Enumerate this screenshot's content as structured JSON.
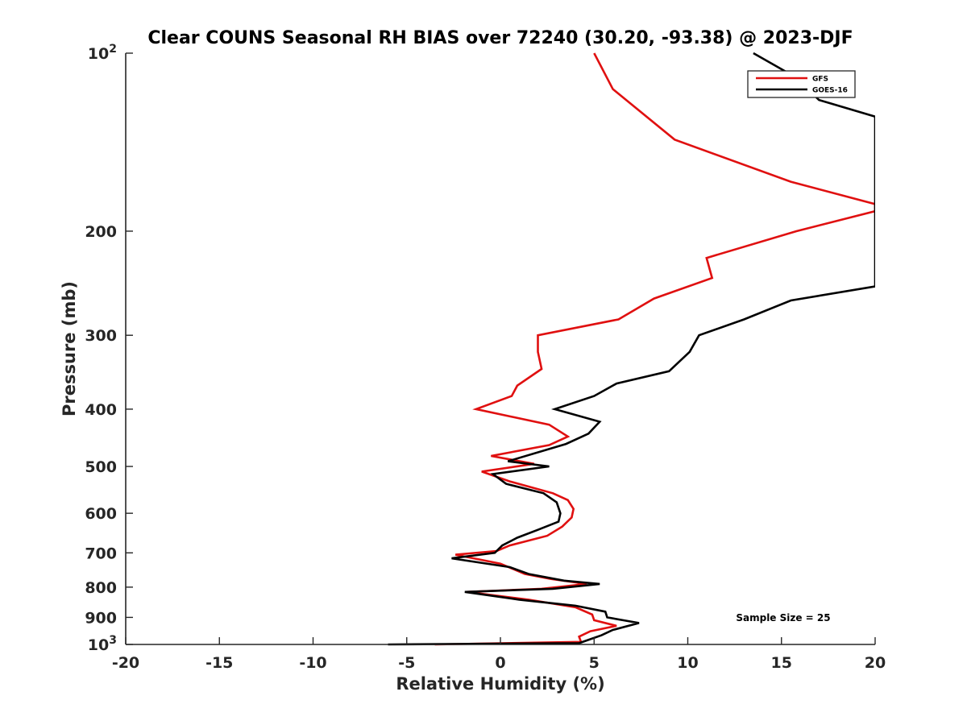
{
  "chart_data": {
    "type": "line",
    "title": "Clear COUNS Seasonal RH BIAS over 72240 (30.20, -93.38) @ 2023-DJF",
    "xlabel": "Relative Humidity (%)",
    "ylabel": "Pressure (mb)",
    "xlim": [
      -20,
      20
    ],
    "ylim": [
      100,
      1000
    ],
    "yscale": "log",
    "y_reversed": true,
    "grid": false,
    "legend_position": "top-right",
    "x_ticks": [
      -20,
      -15,
      -10,
      -5,
      0,
      5,
      10,
      15,
      20
    ],
    "x_tick_labels": [
      "-20",
      "-15",
      "-10",
      "-5",
      "0",
      "5",
      "10",
      "15",
      "20"
    ],
    "y_ticks": [
      100,
      200,
      300,
      400,
      500,
      600,
      700,
      800,
      900,
      1000
    ],
    "y_tick_labels": [
      {
        "base": "10",
        "exp": "2"
      },
      {
        "base": "200",
        "exp": ""
      },
      {
        "base": "300",
        "exp": ""
      },
      {
        "base": "400",
        "exp": ""
      },
      {
        "base": "500",
        "exp": ""
      },
      {
        "base": "600",
        "exp": ""
      },
      {
        "base": "700",
        "exp": ""
      },
      {
        "base": "800",
        "exp": ""
      },
      {
        "base": "900",
        "exp": ""
      },
      {
        "base": "10",
        "exp": "3"
      }
    ],
    "series": [
      {
        "name": "GFS",
        "color": "#e01010",
        "points": [
          [
            5.0,
            100
          ],
          [
            6.0,
            115
          ],
          [
            9.3,
            140
          ],
          [
            15.5,
            165
          ],
          [
            20.0,
            180
          ],
          [
            20.0,
            185
          ],
          [
            15.8,
            200
          ],
          [
            11.0,
            222
          ],
          [
            11.3,
            240
          ],
          [
            8.2,
            260
          ],
          [
            6.3,
            282
          ],
          [
            2.0,
            300
          ],
          [
            2.0,
            320
          ],
          [
            2.2,
            342
          ],
          [
            0.9,
            365
          ],
          [
            0.6,
            380
          ],
          [
            -1.3,
            400
          ],
          [
            2.6,
            425
          ],
          [
            3.6,
            445
          ],
          [
            2.6,
            460
          ],
          [
            -0.5,
            480
          ],
          [
            1.8,
            495
          ],
          [
            -1.0,
            510
          ],
          [
            0.5,
            530
          ],
          [
            2.8,
            555
          ],
          [
            3.6,
            570
          ],
          [
            3.9,
            590
          ],
          [
            3.8,
            610
          ],
          [
            3.3,
            632
          ],
          [
            2.5,
            655
          ],
          [
            0.5,
            680
          ],
          [
            -0.2,
            695
          ],
          [
            -2.4,
            705
          ],
          [
            0.0,
            730
          ],
          [
            1.3,
            760
          ],
          [
            2.7,
            775
          ],
          [
            4.6,
            790
          ],
          [
            2.2,
            805
          ],
          [
            -1.8,
            815
          ],
          [
            1.5,
            840
          ],
          [
            4.0,
            865
          ],
          [
            4.9,
            890
          ],
          [
            5.0,
            910
          ],
          [
            6.2,
            930
          ],
          [
            4.8,
            950
          ],
          [
            4.2,
            970
          ],
          [
            4.3,
            990
          ],
          [
            -3.5,
            1000
          ]
        ]
      },
      {
        "name": "GOES-16",
        "color": "#000000",
        "points": [
          [
            13.5,
            100
          ],
          [
            15.8,
            110
          ],
          [
            17.0,
            120
          ],
          [
            20.0,
            128
          ],
          [
            20.0,
            248
          ],
          [
            15.5,
            262
          ],
          [
            13.0,
            282
          ],
          [
            10.6,
            300
          ],
          [
            10.1,
            320
          ],
          [
            9.0,
            345
          ],
          [
            6.2,
            362
          ],
          [
            5.0,
            380
          ],
          [
            2.9,
            400
          ],
          [
            5.3,
            420
          ],
          [
            4.7,
            440
          ],
          [
            3.5,
            458
          ],
          [
            0.4,
            490
          ],
          [
            2.6,
            500
          ],
          [
            -0.4,
            515
          ],
          [
            0.3,
            535
          ],
          [
            2.3,
            555
          ],
          [
            3.0,
            575
          ],
          [
            3.2,
            600
          ],
          [
            3.1,
            620
          ],
          [
            2.0,
            640
          ],
          [
            0.9,
            660
          ],
          [
            0.1,
            680
          ],
          [
            -0.3,
            700
          ],
          [
            -2.6,
            715
          ],
          [
            0.5,
            740
          ],
          [
            1.5,
            760
          ],
          [
            3.4,
            780
          ],
          [
            5.3,
            790
          ],
          [
            2.8,
            805
          ],
          [
            -1.9,
            815
          ],
          [
            1.0,
            840
          ],
          [
            4.0,
            860
          ],
          [
            5.6,
            880
          ],
          [
            5.7,
            900
          ],
          [
            7.4,
            920
          ],
          [
            6.0,
            945
          ],
          [
            5.4,
            965
          ],
          [
            4.2,
            995
          ],
          [
            -6.0,
            1000
          ]
        ]
      }
    ],
    "annotation": "Sample Size = 25"
  }
}
